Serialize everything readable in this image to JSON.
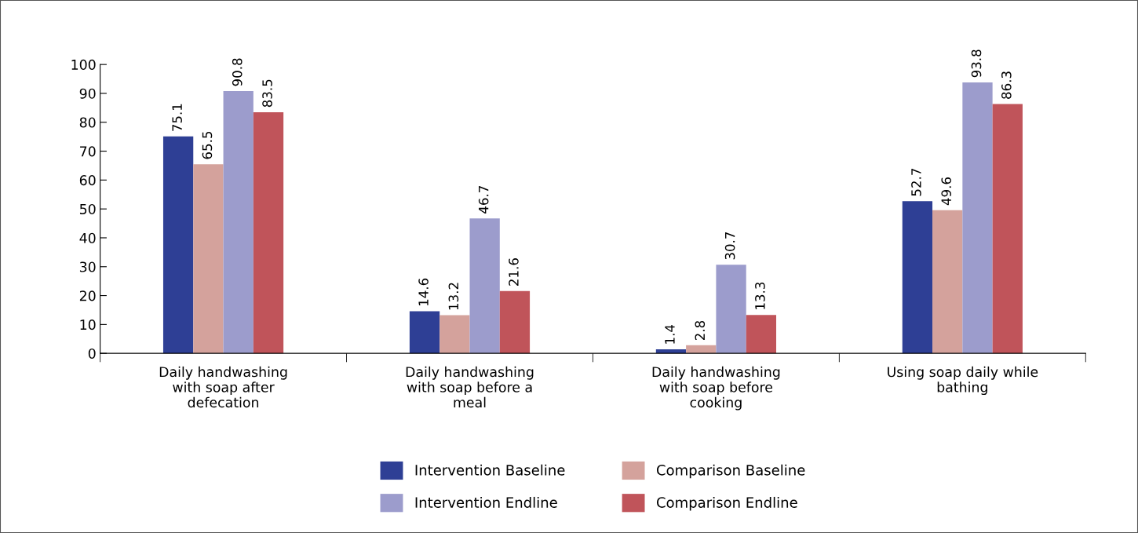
{
  "chart_data": {
    "type": "bar",
    "categories": [
      "Daily handwashing\nwith soap after\ndefecation",
      "Daily handwashing\nwith soap before a\nmeal",
      "Daily handwashing\nwith soap before\ncooking",
      "Using soap daily while\nbathing"
    ],
    "series": [
      {
        "name": "Intervention Baseline",
        "color": "#2e3f95",
        "values": [
          75.1,
          14.6,
          1.4,
          52.7
        ]
      },
      {
        "name": "Comparison Baseline",
        "color": "#d4a29c",
        "values": [
          65.5,
          13.2,
          2.8,
          49.6
        ]
      },
      {
        "name": "Intervention Endline",
        "color": "#9c9ccc",
        "values": [
          90.8,
          46.7,
          30.7,
          93.8
        ]
      },
      {
        "name": "Comparison Endline",
        "color": "#c0545a",
        "values": [
          83.5,
          21.6,
          13.3,
          86.3
        ]
      }
    ],
    "ylim": [
      0,
      100
    ],
    "yticks": [
      0,
      10,
      20,
      30,
      40,
      50,
      60,
      70,
      80,
      90,
      100
    ],
    "data_labels": true,
    "grid": false,
    "legend": "bottom"
  }
}
